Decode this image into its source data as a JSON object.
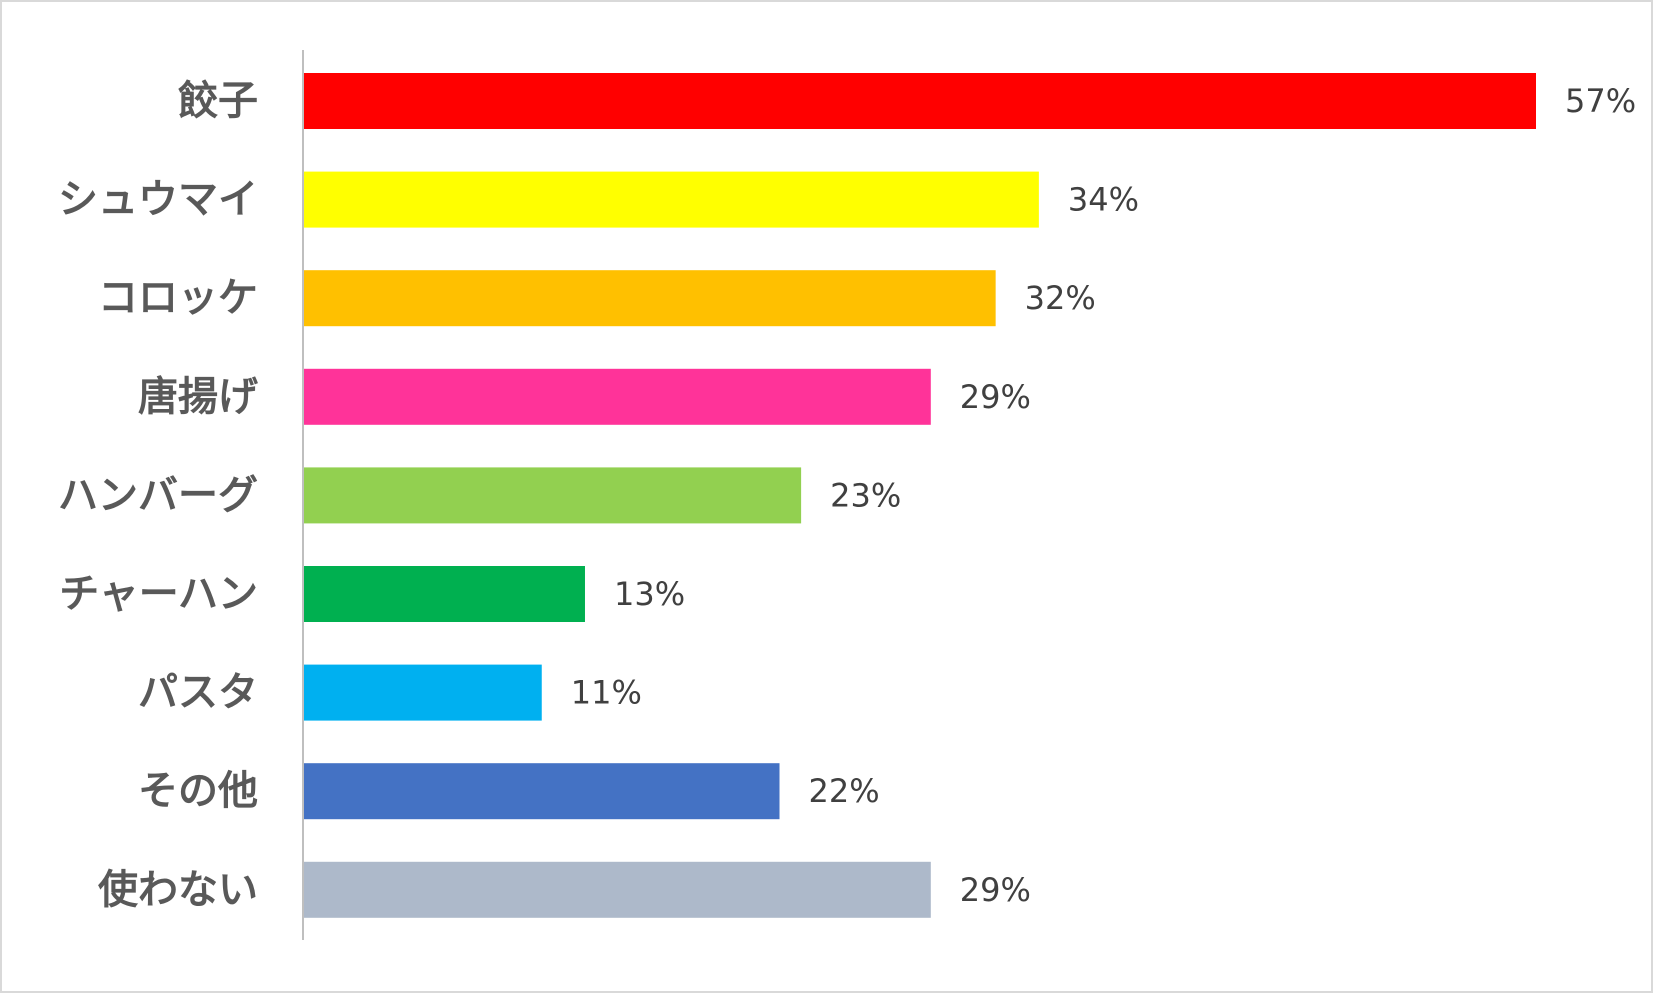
{
  "chart_data": {
    "type": "bar",
    "orientation": "horizontal",
    "categories": [
      "餃子",
      "シュウマイ",
      "コロッケ",
      "唐揚げ",
      "ハンバーグ",
      "チャーハン",
      "パスタ",
      "その他",
      "使わない"
    ],
    "values": [
      57,
      34,
      32,
      29,
      23,
      13,
      11,
      22,
      29
    ],
    "value_labels": [
      "57%",
      "34%",
      "32%",
      "29%",
      "23%",
      "13%",
      "11%",
      "22%",
      "29%"
    ],
    "unit": "%",
    "colors": [
      "#ff0000",
      "#ffff00",
      "#ffc000",
      "#ff3399",
      "#92d050",
      "#00b050",
      "#00b0f0",
      "#4472c4",
      "#adb9ca"
    ],
    "xlim": [
      0,
      57
    ],
    "grid": false,
    "legend": "none",
    "title": "",
    "xlabel": "",
    "ylabel": ""
  }
}
